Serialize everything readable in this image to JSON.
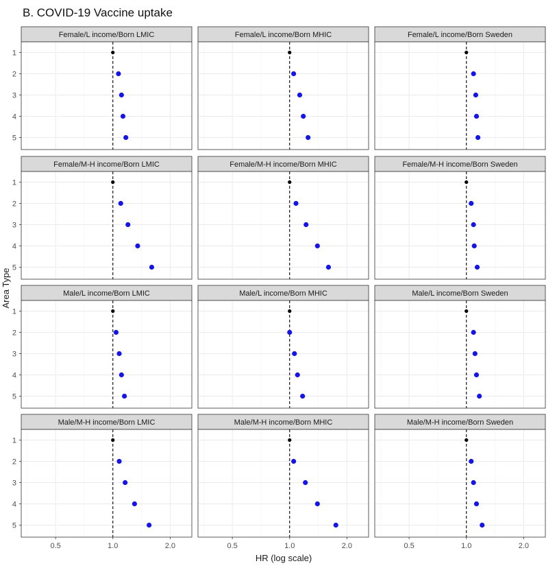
{
  "chart_data": {
    "type": "scatter",
    "title": "B. COVID-19 Vaccine uptake",
    "xlabel": "HR (log scale)",
    "ylabel": "Area Type",
    "x_scale": "log",
    "xlim": [
      0.33,
      2.6
    ],
    "x_ticks": [
      0.5,
      1.0,
      2.0
    ],
    "x_tick_labels": [
      "0.5",
      "1.0",
      "2.0"
    ],
    "y_categories": [
      "1",
      "2",
      "3",
      "4",
      "5"
    ],
    "reference_line": 1.0,
    "grid": true,
    "colors": {
      "reference": "#000000",
      "point": "#1515e6",
      "strip_fill": "#d9d9d9"
    },
    "panels": [
      {
        "strip": "Female/L income/Born LMIC",
        "hr": [
          1.0,
          1.07,
          1.11,
          1.13,
          1.17
        ]
      },
      {
        "strip": "Female/L income/Born MHIC",
        "hr": [
          1.0,
          1.05,
          1.13,
          1.18,
          1.25
        ]
      },
      {
        "strip": "Female/L income/Born Sweden",
        "hr": [
          1.0,
          1.09,
          1.12,
          1.13,
          1.15
        ]
      },
      {
        "strip": "Female/M-H income/Born LMIC",
        "hr": [
          1.0,
          1.1,
          1.2,
          1.35,
          1.6
        ]
      },
      {
        "strip": "Female/M-H income/Born MHIC",
        "hr": [
          1.0,
          1.08,
          1.22,
          1.4,
          1.6
        ]
      },
      {
        "strip": "Female/M-H income/Born Sweden",
        "hr": [
          1.0,
          1.06,
          1.09,
          1.1,
          1.14
        ]
      },
      {
        "strip": "Male/L income/Born LMIC",
        "hr": [
          1.0,
          1.04,
          1.08,
          1.11,
          1.15
        ]
      },
      {
        "strip": "Male/L income/Born MHIC",
        "hr": [
          1.0,
          1.0,
          1.06,
          1.1,
          1.17
        ]
      },
      {
        "strip": "Male/L income/Born Sweden",
        "hr": [
          1.0,
          1.09,
          1.11,
          1.13,
          1.17
        ]
      },
      {
        "strip": "Male/M-H income/Born LMIC",
        "hr": [
          1.0,
          1.08,
          1.16,
          1.3,
          1.55
        ]
      },
      {
        "strip": "Male/M-H income/Born MHIC",
        "hr": [
          1.0,
          1.05,
          1.21,
          1.4,
          1.75
        ]
      },
      {
        "strip": "Male/M-H income/Born Sweden",
        "hr": [
          1.0,
          1.06,
          1.09,
          1.13,
          1.21
        ]
      }
    ]
  }
}
